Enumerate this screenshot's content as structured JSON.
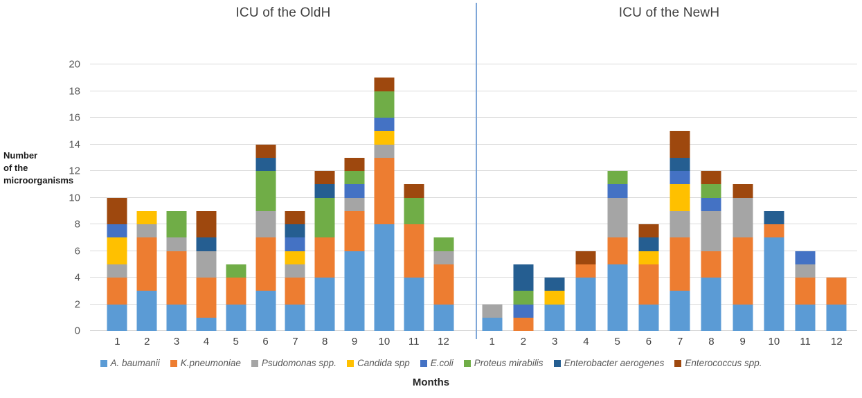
{
  "xlabel": "Months",
  "ylabel_lines": [
    "Number",
    "of the",
    "microorganisms"
  ],
  "colors": {
    "gridline": "#D9D9D9",
    "divider": "#7EA6D8",
    "axis_text": "#595959",
    "title_text": "#3F3F3F"
  },
  "chart_data": {
    "type": "bar",
    "stacked": true,
    "xlabel": "Months",
    "ylabel": "Number of the microorganisms",
    "ylim": [
      0,
      20
    ],
    "yticks": [
      0,
      2,
      4,
      6,
      8,
      10,
      12,
      14,
      16,
      18,
      20
    ],
    "grid": true,
    "legend_position": "bottom",
    "categories": [
      "1",
      "2",
      "3",
      "4",
      "5",
      "6",
      "7",
      "8",
      "9",
      "10",
      "11",
      "12"
    ],
    "panels": [
      {
        "title": "ICU of the OldH",
        "series": [
          {
            "name": "A. baumanii",
            "color": "#5B9BD5",
            "values": [
              2,
              3,
              2,
              1,
              2,
              3,
              2,
              4,
              6,
              8,
              4,
              2
            ]
          },
          {
            "name": "K.pneumoniae",
            "color": "#ED7D31",
            "values": [
              2,
              4,
              4,
              3,
              2,
              4,
              2,
              3,
              3,
              5,
              4,
              3
            ]
          },
          {
            "name": "Psudomonas spp.",
            "color": "#A5A5A5",
            "values": [
              1,
              1,
              1,
              2,
              0,
              2,
              1,
              0,
              1,
              1,
              0,
              1
            ]
          },
          {
            "name": "Candida spp",
            "color": "#FFC000",
            "values": [
              2,
              1,
              0,
              0,
              0,
              0,
              1,
              0,
              0,
              1,
              0,
              0
            ]
          },
          {
            "name": "E.coli",
            "color": "#4472C4",
            "values": [
              1,
              0,
              0,
              0,
              0,
              0,
              1,
              0,
              1,
              1,
              0,
              0
            ]
          },
          {
            "name": "Proteus mirabilis",
            "color": "#70AD47",
            "values": [
              0,
              0,
              2,
              0,
              1,
              3,
              0,
              3,
              1,
              2,
              2,
              1
            ]
          },
          {
            "name": "Enterobacter aerogenes",
            "color": "#255E91",
            "values": [
              0,
              0,
              0,
              1,
              0,
              1,
              1,
              1,
              0,
              0,
              0,
              0
            ]
          },
          {
            "name": "Enterococcus spp.",
            "color": "#9E480E",
            "values": [
              2,
              0,
              0,
              2,
              0,
              1,
              1,
              1,
              1,
              1,
              1,
              0
            ]
          }
        ]
      },
      {
        "title": "ICU of the NewH",
        "series": [
          {
            "name": "A. baumanii",
            "color": "#5B9BD5",
            "values": [
              1,
              0,
              2,
              4,
              5,
              2,
              3,
              4,
              2,
              7,
              2,
              2
            ]
          },
          {
            "name": "K.pneumoniae",
            "color": "#ED7D31",
            "values": [
              0,
              1,
              0,
              1,
              2,
              3,
              4,
              2,
              5,
              1,
              2,
              2
            ]
          },
          {
            "name": "Psudomonas spp.",
            "color": "#A5A5A5",
            "values": [
              1,
              0,
              0,
              0,
              3,
              0,
              2,
              3,
              3,
              0,
              1,
              0
            ]
          },
          {
            "name": "Candida spp",
            "color": "#FFC000",
            "values": [
              0,
              0,
              1,
              0,
              0,
              1,
              2,
              0,
              0,
              0,
              0,
              0
            ]
          },
          {
            "name": "E.coli",
            "color": "#4472C4",
            "values": [
              0,
              1,
              0,
              0,
              1,
              0,
              1,
              1,
              0,
              0,
              1,
              0
            ]
          },
          {
            "name": "Proteus mirabilis",
            "color": "#70AD47",
            "values": [
              0,
              1,
              0,
              0,
              1,
              0,
              0,
              1,
              0,
              0,
              0,
              0
            ]
          },
          {
            "name": "Enterobacter aerogenes",
            "color": "#255E91",
            "values": [
              0,
              2,
              1,
              0,
              0,
              1,
              1,
              0,
              0,
              1,
              0,
              0
            ]
          },
          {
            "name": "Enterococcus spp.",
            "color": "#9E480E",
            "values": [
              0,
              0,
              0,
              1,
              0,
              1,
              2,
              1,
              1,
              0,
              0,
              0
            ]
          }
        ]
      }
    ],
    "legend": [
      {
        "name": "A. baumanii",
        "color": "#5B9BD5"
      },
      {
        "name": "K.pneumoniae",
        "color": "#ED7D31"
      },
      {
        "name": "Psudomonas spp.",
        "color": "#A5A5A5"
      },
      {
        "name": "Candida spp",
        "color": "#FFC000"
      },
      {
        "name": "E.coli",
        "color": "#4472C4"
      },
      {
        "name": "Proteus mirabilis",
        "color": "#70AD47"
      },
      {
        "name": "Enterobacter aerogenes",
        "color": "#255E91"
      },
      {
        "name": "Enterococcus spp.",
        "color": "#9E480E"
      }
    ]
  }
}
